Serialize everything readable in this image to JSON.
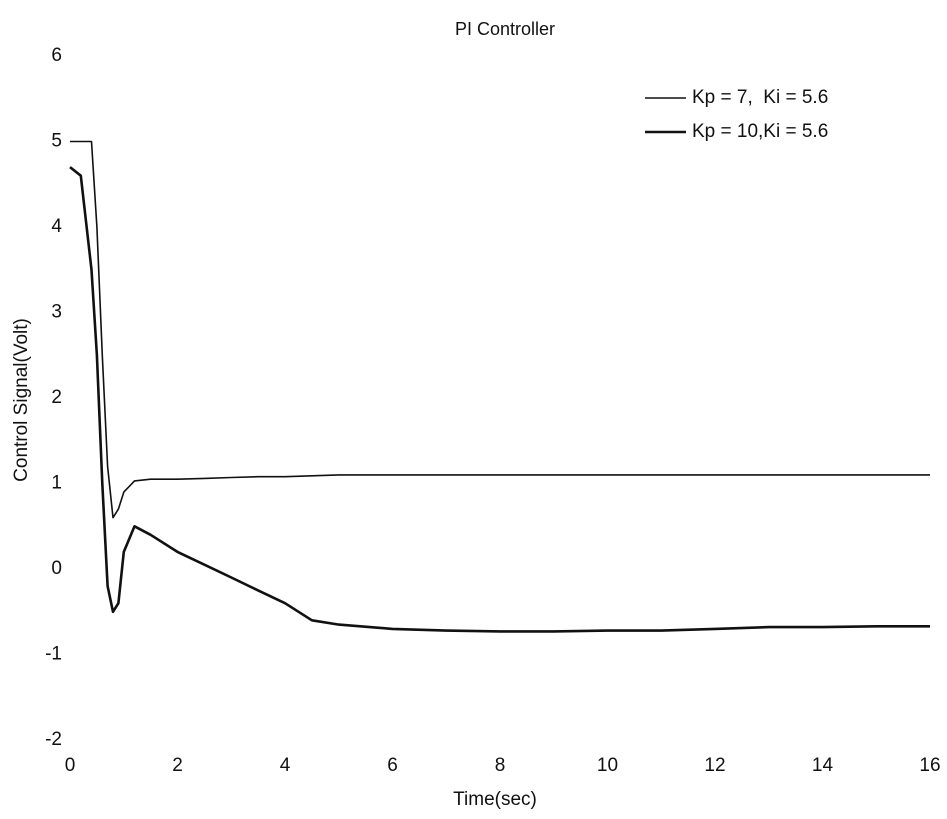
{
  "chart_data": {
    "type": "line",
    "title": "PI Controller",
    "x_label": "Time(sec)",
    "y_label": "Control Signal(Volt)",
    "x": [
      0,
      0.2,
      0.4,
      0.5,
      0.6,
      0.7,
      0.8,
      0.9,
      1.0,
      1.2,
      1.5,
      2,
      2.5,
      3,
      3.5,
      4,
      4.5,
      5,
      6,
      7,
      8,
      9,
      10,
      11,
      12,
      13,
      14,
      15,
      16
    ],
    "series": [
      {
        "name": "Kp = 7,  Ki = 5.6",
        "color": "#111111",
        "line_width": 1.6,
        "values": [
          5,
          5,
          5,
          4.0,
          2.5,
          1.2,
          0.6,
          0.7,
          0.9,
          1.03,
          1.05,
          1.05,
          1.06,
          1.07,
          1.08,
          1.08,
          1.09,
          1.1,
          1.1,
          1.1,
          1.1,
          1.1,
          1.1,
          1.1,
          1.1,
          1.1,
          1.1,
          1.1,
          1.1
        ]
      },
      {
        "name": "Kp = 10,Ki = 5.6",
        "color": "#111111",
        "line_width": 2.6,
        "values": [
          4.7,
          4.6,
          3.5,
          2.5,
          1.0,
          -0.2,
          -0.5,
          -0.4,
          0.2,
          0.5,
          0.4,
          0.2,
          0.05,
          -0.1,
          -0.25,
          -0.4,
          -0.6,
          -0.65,
          -0.7,
          -0.72,
          -0.73,
          -0.73,
          -0.72,
          -0.72,
          -0.7,
          -0.68,
          -0.68,
          -0.67,
          -0.67
        ]
      }
    ],
    "xlim": [
      0,
      16
    ],
    "xticks": [
      0,
      2,
      4,
      6,
      8,
      10,
      12,
      14,
      16
    ],
    "ylim": [
      -2,
      6
    ],
    "yticks": [
      -2,
      -1,
      0,
      1,
      2,
      3,
      4,
      5,
      6
    ],
    "grid": false,
    "legend": "upper right"
  }
}
